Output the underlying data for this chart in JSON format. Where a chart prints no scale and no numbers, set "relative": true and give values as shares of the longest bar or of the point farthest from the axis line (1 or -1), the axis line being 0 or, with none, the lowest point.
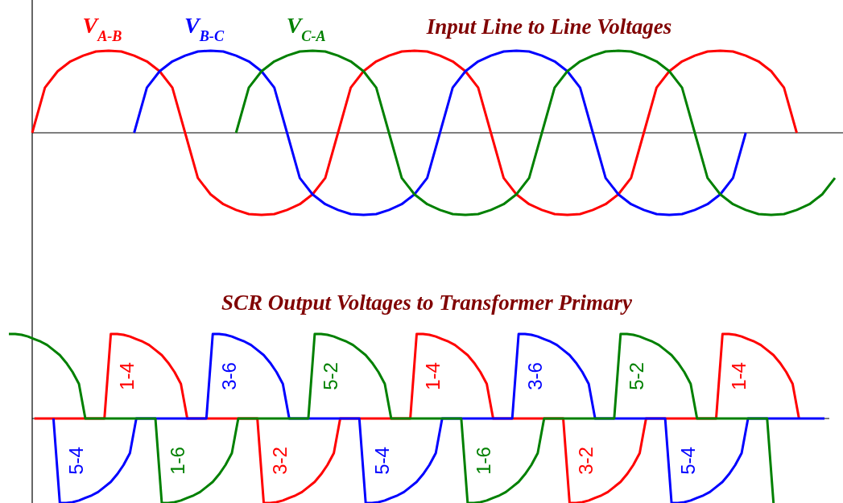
{
  "chart_data": [
    {
      "type": "line",
      "title": "Input Line to Line Voltages",
      "relative": true,
      "categories": [
        null,
        null,
        null,
        null,
        null,
        null,
        null,
        null,
        null,
        null,
        null,
        null,
        null,
        null,
        null,
        null,
        null,
        null,
        null,
        null,
        null,
        null,
        null,
        null,
        null,
        null,
        null,
        null,
        null,
        null,
        null,
        null,
        null,
        null,
        null,
        null,
        null,
        null,
        null,
        null,
        null,
        null,
        null,
        null,
        null,
        null,
        null,
        null,
        null,
        null,
        null,
        null,
        null,
        null,
        null,
        null,
        null,
        null,
        null,
        null,
        null,
        null,
        null,
        null
      ],
      "series": [
        {
          "name": "V$_{A-B}$",
          "color": "#ff0000",
          "values": [
            0,
            0.55,
            0.75,
            0.87,
            0.94,
            0.99,
            1,
            0.99,
            0.94,
            0.87,
            0.75,
            0.55,
            0,
            -0.55,
            -0.75,
            -0.87,
            -0.94,
            -0.99,
            -1,
            -0.99,
            -0.94,
            -0.87,
            -0.75,
            -0.55,
            0,
            0.55,
            0.75,
            0.87,
            0.94,
            0.99,
            1,
            0.99,
            0.94,
            0.87,
            0.75,
            0.55,
            0,
            -0.55,
            -0.75,
            -0.87,
            -0.94,
            -0.99,
            -1,
            -0.99,
            -0.94,
            -0.87,
            -0.75,
            -0.55,
            0,
            0.55,
            0.75,
            0.87,
            0.94,
            0.99,
            1,
            0.99,
            0.94,
            0.87,
            0.75,
            0.55,
            0,
            null,
            null,
            null
          ]
        },
        {
          "name": "V$_{B-C}$",
          "color": "#0000ff",
          "values": [
            null,
            null,
            null,
            null,
            null,
            null,
            null,
            null,
            0,
            0.55,
            0.75,
            0.87,
            0.94,
            0.99,
            1,
            0.99,
            0.94,
            0.87,
            0.75,
            0.55,
            0,
            -0.55,
            -0.75,
            -0.87,
            -0.94,
            -0.99,
            -1,
            -0.99,
            -0.94,
            -0.87,
            -0.75,
            -0.55,
            0,
            0.55,
            0.75,
            0.87,
            0.94,
            0.99,
            1,
            0.99,
            0.94,
            0.87,
            0.75,
            0.55,
            0,
            -0.55,
            -0.75,
            -0.87,
            -0.94,
            -0.99,
            -1,
            -0.99,
            -0.94,
            -0.87,
            -0.75,
            -0.55,
            0,
            null,
            null,
            null,
            null,
            null,
            null,
            null
          ]
        },
        {
          "name": "V$_{C-A}$",
          "color": "#008000",
          "values": [
            null,
            null,
            null,
            null,
            null,
            null,
            null,
            null,
            null,
            null,
            null,
            null,
            null,
            null,
            null,
            null,
            0,
            0.55,
            0.75,
            0.87,
            0.94,
            0.99,
            1,
            0.99,
            0.94,
            0.87,
            0.75,
            0.55,
            0,
            -0.55,
            -0.75,
            -0.87,
            -0.94,
            -0.99,
            -1,
            -0.99,
            -0.94,
            -0.87,
            -0.75,
            -0.55,
            0,
            0.55,
            0.75,
            0.87,
            0.94,
            0.99,
            1,
            0.99,
            0.94,
            0.87,
            0.75,
            0.55,
            0,
            -0.55,
            -0.75,
            -0.87,
            -0.94,
            -0.99,
            -1,
            -0.99,
            -0.94,
            -0.87,
            -0.75,
            -0.55
          ]
        }
      ]
    },
    {
      "type": "line",
      "title": "SCR Output Voltages to Transformer Primary",
      "relative": true,
      "categories": [
        null,
        null,
        null,
        null,
        null,
        null,
        null,
        null,
        null,
        null,
        null,
        null,
        null,
        null,
        null,
        null,
        null,
        null,
        null,
        null,
        null,
        null,
        null,
        null,
        null,
        null,
        null,
        null,
        null,
        null,
        null,
        null,
        null,
        null,
        null,
        null,
        null,
        null,
        null,
        null,
        null,
        null,
        null,
        null,
        null,
        null,
        null,
        null,
        null,
        null,
        null,
        null,
        null,
        null,
        null,
        null,
        null,
        null,
        null,
        null,
        null,
        null,
        null,
        null,
        null,
        null,
        null,
        null,
        null,
        null,
        null,
        null,
        null,
        null,
        null,
        null,
        null,
        null,
        null,
        null,
        null,
        null,
        null,
        null,
        null,
        null,
        null,
        null,
        null,
        null,
        null,
        null,
        null,
        null,
        null,
        null,
        null,
        null,
        null,
        null,
        null,
        null,
        null,
        null,
        null,
        null,
        null,
        null,
        null,
        null,
        null,
        null,
        null,
        null,
        null,
        null,
        null,
        null,
        null,
        null,
        null,
        null,
        null,
        null,
        null,
        null,
        null,
        null,
        null
      ],
      "annotations": [
        "5-4",
        "1-4",
        "1-6",
        "3-6",
        "3-2",
        "5-2",
        "5-4",
        "1-4",
        "1-6",
        "3-6",
        "3-2",
        "5-2",
        "5-4",
        "1-4"
      ],
      "series": [
        {
          "color": "#ff0000",
          "values": [
            null,
            null,
            null,
            null,
            0,
            0,
            0,
            0,
            0,
            0,
            0,
            0,
            0,
            0,
            0,
            0,
            1,
            1,
            0.99,
            0.97,
            0.94,
            0.91,
            0.87,
            0.81,
            0.75,
            0.66,
            0.55,
            0.41,
            0,
            0,
            0,
            0,
            0,
            0,
            0,
            0,
            0,
            0,
            0,
            0,
            -1,
            -1,
            -0.99,
            -0.97,
            -0.94,
            -0.91,
            -0.87,
            -0.81,
            -0.75,
            -0.66,
            -0.55,
            -0.41,
            0,
            0,
            0,
            0,
            0,
            0,
            0,
            0,
            0,
            0,
            0,
            0,
            1,
            1,
            0.99,
            0.97,
            0.94,
            0.91,
            0.87,
            0.81,
            0.75,
            0.66,
            0.55,
            0.41,
            0,
            0,
            0,
            0,
            0,
            0,
            0,
            0,
            0,
            0,
            0,
            0,
            -1,
            -1,
            -0.99,
            -0.97,
            -0.94,
            -0.91,
            -0.87,
            -0.81,
            -0.75,
            -0.66,
            -0.55,
            -0.41,
            0,
            0,
            0,
            0,
            0,
            0,
            0,
            0,
            0,
            0,
            0,
            0,
            1,
            1,
            0.99,
            0.97,
            0.94,
            0.91,
            0.87,
            0.81,
            0.75,
            0.66,
            0.55,
            0.41,
            0,
            null,
            null,
            null,
            null
          ]
        },
        {
          "color": "#0000ff",
          "values": [
            null,
            null,
            null,
            null,
            null,
            null,
            null,
            0,
            -1,
            -1,
            -0.99,
            -0.97,
            -0.94,
            -0.91,
            -0.87,
            -0.81,
            -0.75,
            -0.66,
            -0.55,
            -0.41,
            0,
            0,
            0,
            0,
            0,
            0,
            0,
            0,
            0,
            0,
            0,
            0,
            1,
            1,
            0.99,
            0.97,
            0.94,
            0.91,
            0.87,
            0.81,
            0.75,
            0.66,
            0.55,
            0.41,
            0,
            0,
            0,
            0,
            0,
            0,
            0,
            0,
            0,
            0,
            0,
            0,
            -1,
            -1,
            -0.99,
            -0.97,
            -0.94,
            -0.91,
            -0.87,
            -0.81,
            -0.75,
            -0.66,
            -0.55,
            -0.41,
            0,
            0,
            0,
            0,
            0,
            0,
            0,
            0,
            0,
            0,
            0,
            0,
            1,
            1,
            0.99,
            0.97,
            0.94,
            0.91,
            0.87,
            0.81,
            0.75,
            0.66,
            0.55,
            0.41,
            0,
            0,
            0,
            0,
            0,
            0,
            0,
            0,
            0,
            0,
            0,
            0,
            -1,
            -1,
            -0.99,
            -0.97,
            -0.94,
            -0.91,
            -0.87,
            -0.81,
            -0.75,
            -0.66,
            -0.55,
            -0.41,
            0,
            0,
            0,
            0,
            0,
            0,
            0,
            0,
            0,
            0,
            0,
            0,
            0
          ]
        },
        {
          "color": "#008000",
          "values": [
            1,
            1,
            0.99,
            0.97,
            0.94,
            0.91,
            0.87,
            0.81,
            0.75,
            0.66,
            0.55,
            0.41,
            0,
            0,
            0,
            0,
            0,
            0,
            0,
            0,
            0,
            0,
            0,
            0,
            -1,
            -1,
            -0.99,
            -0.97,
            -0.94,
            -0.91,
            -0.87,
            -0.81,
            -0.75,
            -0.66,
            -0.55,
            -0.41,
            0,
            0,
            0,
            0,
            0,
            0,
            0,
            0,
            0,
            0,
            0,
            0,
            1,
            1,
            0.99,
            0.97,
            0.94,
            0.91,
            0.87,
            0.81,
            0.75,
            0.66,
            0.55,
            0.41,
            0,
            0,
            0,
            0,
            0,
            0,
            0,
            0,
            0,
            0,
            0,
            0,
            -1,
            -1,
            -0.99,
            -0.97,
            -0.94,
            -0.91,
            -0.87,
            -0.81,
            -0.75,
            -0.66,
            -0.55,
            -0.41,
            0,
            0,
            0,
            0,
            0,
            0,
            0,
            0,
            0,
            0,
            0,
            0,
            1,
            1,
            0.99,
            0.97,
            0.94,
            0.91,
            0.87,
            0.81,
            0.75,
            0.66,
            0.55,
            0.41,
            0,
            0,
            0,
            0,
            0,
            0,
            0,
            0,
            0,
            0,
            0,
            0,
            -1,
            null,
            null,
            null,
            null,
            null,
            null,
            null,
            null
          ]
        }
      ]
    }
  ]
}
